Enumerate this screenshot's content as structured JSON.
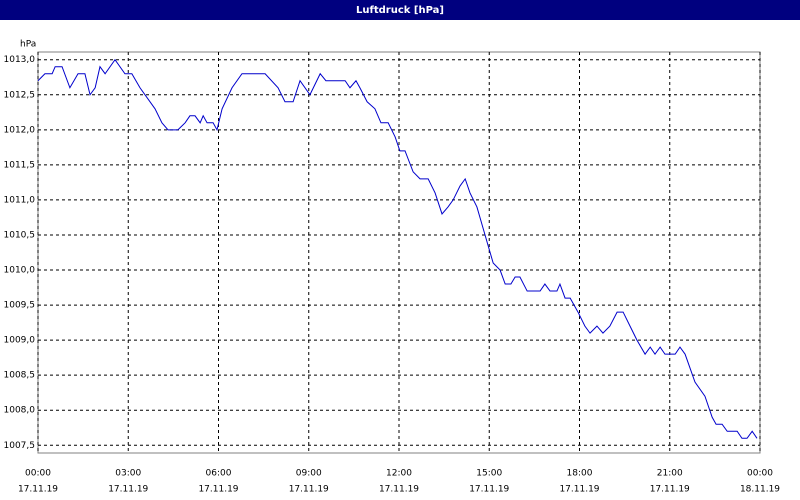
{
  "chart_data": {
    "type": "line",
    "title": "Luftdruck [hPa]",
    "y_unit": "hPa",
    "xlim": [
      0,
      24
    ],
    "xticks": [
      {
        "value": 0,
        "label": "00:00",
        "date": "17.11.19"
      },
      {
        "value": 3,
        "label": "03:00",
        "date": "17.11.19"
      },
      {
        "value": 6,
        "label": "06:00",
        "date": "17.11.19"
      },
      {
        "value": 9,
        "label": "09:00",
        "date": "17.11.19"
      },
      {
        "value": 12,
        "label": "12:00",
        "date": "17.11.19"
      },
      {
        "value": 15,
        "label": "15:00",
        "date": "17.11.19"
      },
      {
        "value": 18,
        "label": "18:00",
        "date": "17.11.19"
      },
      {
        "value": 21,
        "label": "21:00",
        "date": "17.11.19"
      },
      {
        "value": 24,
        "label": "00:00",
        "date": "18.11.19"
      }
    ],
    "ylim": [
      1007.39,
      1013.11
    ],
    "yticks": [
      {
        "value": 1007.5,
        "label": "1007,5"
      },
      {
        "value": 1008,
        "label": "1008,0"
      },
      {
        "value": 1008.5,
        "label": "1008,5"
      },
      {
        "value": 1009,
        "label": "1009,0"
      },
      {
        "value": 1009.5,
        "label": "1009,5"
      },
      {
        "value": 1010,
        "label": "1010,0"
      },
      {
        "value": 1010.5,
        "label": "1010,5"
      },
      {
        "value": 1011,
        "label": "1011,0"
      },
      {
        "value": 1011.5,
        "label": "1011,5"
      },
      {
        "value": 1012,
        "label": "1012,0"
      },
      {
        "value": 1012.5,
        "label": "1012,5"
      },
      {
        "value": 1013,
        "label": "1013,0"
      }
    ],
    "grid": true,
    "color": "#0000cc",
    "x": [
      0,
      0.23,
      0.47,
      0.57,
      0.8,
      1.06,
      1.33,
      1.56,
      1.73,
      1.9,
      2.06,
      2.23,
      2.56,
      2.89,
      3.12,
      3.39,
      3.89,
      4.12,
      4.32,
      4.65,
      4.89,
      5.05,
      5.22,
      5.39,
      5.49,
      5.62,
      5.82,
      5.95,
      6.12,
      6.45,
      6.78,
      7.55,
      7.98,
      8.21,
      8.48,
      8.71,
      9.04,
      9.38,
      9.57,
      10.21,
      10.37,
      10.57,
      10.7,
      10.94,
      11.2,
      11.4,
      11.64,
      11.87,
      12.03,
      12.2,
      12.47,
      12.7,
      12.97,
      13.2,
      13.43,
      13.63,
      13.8,
      14.03,
      14.2,
      14.36,
      14.59,
      14.86,
      15.13,
      15.36,
      15.53,
      15.72,
      15.86,
      16.02,
      16.26,
      16.69,
      16.85,
      17.02,
      17.25,
      17.35,
      17.52,
      17.69,
      17.95,
      18.18,
      18.35,
      18.58,
      18.78,
      19.01,
      19.25,
      19.45,
      19.68,
      19.91,
      20.18,
      20.35,
      20.51,
      20.68,
      20.84,
      21.18,
      21.34,
      21.51,
      21.84,
      22.17,
      22.41,
      22.54,
      22.74,
      22.91,
      23.24,
      23.4,
      23.57,
      23.74,
      23.9
    ],
    "values": [
      1012.7,
      1012.8,
      1012.8,
      1012.9,
      1012.9,
      1012.6,
      1012.8,
      1012.8,
      1012.5,
      1012.6,
      1012.9,
      1012.8,
      1013.0,
      1012.8,
      1012.8,
      1012.6,
      1012.3,
      1012.1,
      1012.0,
      1012.0,
      1012.1,
      1012.2,
      1012.2,
      1012.1,
      1012.2,
      1012.1,
      1012.1,
      1012.0,
      1012.3,
      1012.6,
      1012.8,
      1012.8,
      1012.6,
      1012.4,
      1012.4,
      1012.7,
      1012.5,
      1012.8,
      1012.7,
      1012.7,
      1012.6,
      1012.7,
      1012.6,
      1012.4,
      1012.3,
      1012.1,
      1012.1,
      1011.9,
      1011.7,
      1011.7,
      1011.4,
      1011.3,
      1011.3,
      1011.1,
      1010.8,
      1010.9,
      1011.0,
      1011.2,
      1011.3,
      1011.1,
      1010.9,
      1010.5,
      1010.1,
      1010.0,
      1009.8,
      1009.8,
      1009.9,
      1009.9,
      1009.7,
      1009.7,
      1009.8,
      1009.7,
      1009.7,
      1009.8,
      1009.6,
      1009.6,
      1009.4,
      1009.2,
      1009.1,
      1009.2,
      1009.1,
      1009.2,
      1009.4,
      1009.4,
      1009.2,
      1009.0,
      1008.8,
      1008.9,
      1008.8,
      1008.9,
      1008.8,
      1008.8,
      1008.9,
      1008.8,
      1008.4,
      1008.2,
      1007.9,
      1007.8,
      1007.8,
      1007.7,
      1007.7,
      1007.6,
      1007.6,
      1007.7,
      1007.6
    ]
  }
}
